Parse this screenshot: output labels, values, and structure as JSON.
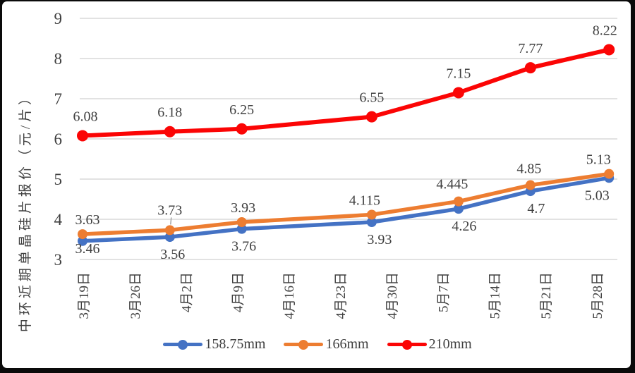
{
  "frame": {
    "background": "#0a0a0a",
    "card_background": "#ffffff"
  },
  "chart_data": {
    "type": "line",
    "title": "",
    "ylabel": "中环近期单晶硅片报价（元/片）",
    "xlabel": "",
    "ylim": [
      3,
      9
    ],
    "ytick_step": 1,
    "grid": true,
    "legend_position": "bottom",
    "x_label_rotation": -90,
    "gridline_color": "#d9d9d9",
    "text_color": "#404040",
    "categories": [
      "3月19日",
      "3月26日",
      "4月2日",
      "4月9日",
      "4月16日",
      "4月23日",
      "4月30日",
      "5月7日",
      "5月14日",
      "5月21日",
      "5月28日"
    ],
    "series": [
      {
        "name": "158.75mm",
        "color": "#4472c4",
        "line_width": 5.5,
        "marker_radius": 7,
        "label_dy": 31,
        "points": [
          {
            "date": "3月19日",
            "xi": 0,
            "value": 3.46,
            "label": "3.46",
            "ldy": 17,
            "ldx": 7
          },
          {
            "date": "4月2日",
            "xi": 1.7,
            "value": 3.56,
            "label": "3.56",
            "ldx": 4
          },
          {
            "date": "4月9日",
            "xi": 3.1,
            "value": 3.76,
            "label": "3.76",
            "ldx": 3
          },
          {
            "date": "4月30日",
            "xi": 5.63,
            "value": 3.93,
            "label": "3.93",
            "ldx": 11
          },
          {
            "date": "5月7日",
            "xi": 7.32,
            "value": 4.26,
            "label": "4.26",
            "ldx": 8
          },
          {
            "date": "5月21日",
            "xi": 8.72,
            "value": 4.7,
            "label": "4.7",
            "ldx": 8
          },
          {
            "date": "5月28日",
            "xi": 10.25,
            "value": 5.03,
            "label": "5.03",
            "ldx": -17
          }
        ]
      },
      {
        "name": "166mm",
        "color": "#ed7d31",
        "line_width": 5.5,
        "marker_radius": 7,
        "label_dy": -14,
        "points": [
          {
            "date": "3月19日",
            "xi": 0,
            "value": 3.63,
            "label": "3.63",
            "ldx": 7
          },
          {
            "date": "4月2日",
            "xi": 1.7,
            "value": 3.73,
            "label": "3.73",
            "ldy": -22,
            "leader": true
          },
          {
            "date": "4月9日",
            "xi": 3.1,
            "value": 3.93,
            "label": "3.93",
            "ldx": 2
          },
          {
            "date": "4月30日",
            "xi": 5.63,
            "value": 4.115,
            "label": "4.115",
            "ldx": -10
          },
          {
            "date": "5月7日",
            "xi": 7.32,
            "value": 4.445,
            "label": "4.445",
            "ldx": -9,
            "ldy": -18
          },
          {
            "date": "5月21日",
            "xi": 8.72,
            "value": 4.85,
            "label": "4.85",
            "ldx": -2,
            "ldy": -17
          },
          {
            "date": "5月28日",
            "xi": 10.25,
            "value": 5.13,
            "label": "5.13",
            "ldx": -15
          }
        ]
      },
      {
        "name": "210mm",
        "color": "#fb0505",
        "line_width": 6,
        "marker_radius": 8,
        "label_dy": -21,
        "points": [
          {
            "date": "3月19日",
            "xi": 0,
            "value": 6.08,
            "label": "6.08",
            "ldx": 4
          },
          {
            "date": "4月2日",
            "xi": 1.7,
            "value": 6.18,
            "label": "6.18"
          },
          {
            "date": "4月9日",
            "xi": 3.1,
            "value": 6.25,
            "label": "6.25"
          },
          {
            "date": "4月30日",
            "xi": 5.63,
            "value": 6.55,
            "label": "6.55"
          },
          {
            "date": "5月7日",
            "xi": 7.32,
            "value": 7.15,
            "label": "7.15"
          },
          {
            "date": "5月21日",
            "xi": 8.72,
            "value": 7.77,
            "label": "7.77"
          },
          {
            "date": "5月28日",
            "xi": 10.25,
            "value": 8.22,
            "label": "8.22",
            "ldx": -6
          }
        ]
      }
    ]
  }
}
